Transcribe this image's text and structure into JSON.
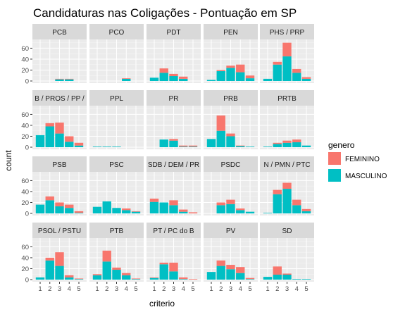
{
  "chart_data": {
    "type": "bar",
    "title": "Candidaturas nas Coligações - Pontuação em SP",
    "xlabel": "criterio",
    "ylabel": "count",
    "x_ticks": [
      "1",
      "2",
      "3",
      "4",
      "5"
    ],
    "y_ticks": [
      0,
      20,
      40,
      60
    ],
    "ylim": [
      0,
      76
    ],
    "grid": true,
    "legend_position": "right",
    "legend": {
      "title": "genero",
      "entries": [
        {
          "name": "FEMININO",
          "color": "#F8766D"
        },
        {
          "name": "MASCULINO",
          "color": "#00BFC4"
        }
      ]
    },
    "stack_order": [
      "MASCULINO",
      "FEMININO"
    ],
    "panels": [
      {
        "label": "PCB",
        "masculino": [
          0,
          0,
          3,
          3,
          0
        ],
        "feminino": [
          0,
          0,
          1,
          1,
          0
        ]
      },
      {
        "label": "PCO",
        "masculino": [
          0,
          0,
          0,
          4,
          0
        ],
        "feminino": [
          0,
          0,
          0,
          1,
          0
        ]
      },
      {
        "label": "PDT",
        "masculino": [
          6,
          15,
          9,
          4,
          0
        ],
        "feminino": [
          0,
          8,
          4,
          4,
          0
        ]
      },
      {
        "label": "PEN",
        "masculino": [
          2,
          18,
          24,
          16,
          5
        ],
        "feminino": [
          0,
          2,
          4,
          14,
          5
        ]
      },
      {
        "label": "PHS / PRP",
        "masculino": [
          4,
          30,
          45,
          15,
          4
        ],
        "feminino": [
          0,
          5,
          25,
          7,
          3
        ]
      },
      {
        "label": "B / PROS / PP /",
        "masculino": [
          22,
          38,
          25,
          10,
          3
        ],
        "feminino": [
          0,
          6,
          20,
          10,
          5
        ]
      },
      {
        "label": "PPL",
        "masculino": [
          1,
          1,
          1,
          0,
          0
        ],
        "feminino": [
          0,
          0,
          0,
          0,
          0
        ]
      },
      {
        "label": "PR",
        "masculino": [
          0,
          14,
          12,
          1,
          1
        ],
        "feminino": [
          0,
          0,
          3,
          2,
          2
        ]
      },
      {
        "label": "PRB",
        "masculino": [
          15,
          30,
          20,
          2,
          1
        ],
        "feminino": [
          0,
          28,
          5,
          1,
          0
        ]
      },
      {
        "label": "PRTB",
        "masculino": [
          1,
          6,
          8,
          9,
          3
        ],
        "feminino": [
          0,
          2,
          4,
          5,
          0
        ]
      },
      {
        "label": "PSB",
        "masculino": [
          16,
          24,
          13,
          10,
          1
        ],
        "feminino": [
          0,
          7,
          7,
          6,
          3
        ]
      },
      {
        "label": "PSC",
        "masculino": [
          12,
          22,
          10,
          6,
          3
        ],
        "feminino": [
          0,
          0,
          0,
          3,
          1
        ]
      },
      {
        "label": "SDB / DEM / PR",
        "masculino": [
          21,
          20,
          15,
          3,
          0
        ],
        "feminino": [
          6,
          0,
          9,
          4,
          2
        ]
      },
      {
        "label": "PSDC",
        "masculino": [
          0,
          15,
          17,
          6,
          3
        ],
        "feminino": [
          0,
          5,
          8,
          3,
          0
        ]
      },
      {
        "label": "N / PMN / PTC",
        "masculino": [
          1,
          35,
          45,
          15,
          4
        ],
        "feminino": [
          0,
          8,
          11,
          10,
          4
        ]
      },
      {
        "label": "PSOL / PSTU",
        "masculino": [
          4,
          35,
          25,
          4,
          1
        ],
        "feminino": [
          0,
          5,
          25,
          4,
          1
        ]
      },
      {
        "label": "PTB",
        "masculino": [
          8,
          33,
          18,
          8,
          1
        ],
        "feminino": [
          2,
          20,
          4,
          4,
          1
        ]
      },
      {
        "label": "PT / PC do B",
        "masculino": [
          3,
          28,
          15,
          1,
          0
        ],
        "feminino": [
          1,
          3,
          16,
          3,
          1
        ]
      },
      {
        "label": "PV",
        "masculino": [
          14,
          25,
          19,
          12,
          1
        ],
        "feminino": [
          0,
          10,
          8,
          11,
          2
        ]
      },
      {
        "label": "SD",
        "masculino": [
          5,
          9,
          9,
          1,
          1
        ],
        "feminino": [
          0,
          15,
          2,
          0,
          0
        ]
      }
    ]
  }
}
